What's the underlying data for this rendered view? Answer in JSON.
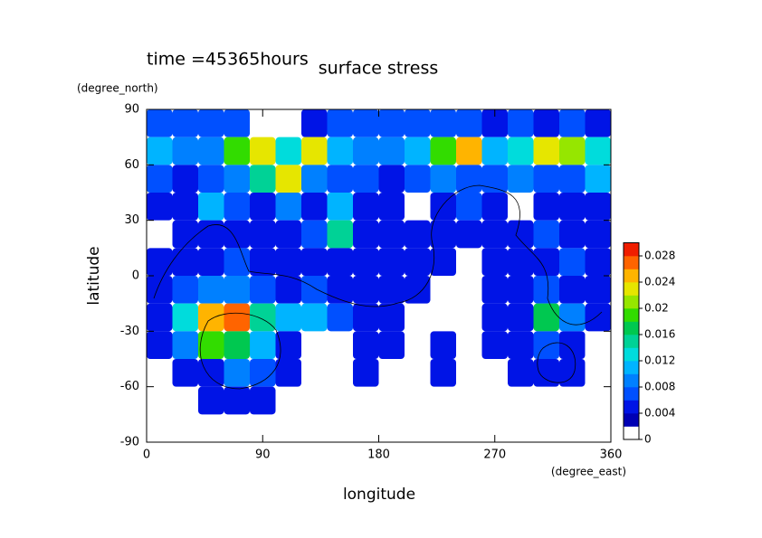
{
  "chart_data": {
    "type": "contour",
    "title": "surface stress",
    "annotation": "time =45365hours",
    "xlabel": "longitude",
    "ylabel": "latitude",
    "xunits": "(degree_east)",
    "yunits": "(degree_north)",
    "xlim": [
      0,
      360
    ],
    "ylim": [
      -90,
      90
    ],
    "xticks": [
      0,
      90,
      180,
      270,
      360
    ],
    "yticks": [
      -90,
      -60,
      -30,
      0,
      30,
      60,
      90
    ],
    "clim": [
      0,
      0.03
    ],
    "cticks": [
      0,
      0.004,
      0.008,
      0.012,
      0.016,
      0.02,
      0.024,
      0.028
    ],
    "colors": [
      "#ffffff",
      "#0000b4",
      "#0014e6",
      "#0050ff",
      "#0080ff",
      "#00b4ff",
      "#00dcdc",
      "#00d296",
      "#00c850",
      "#32dc00",
      "#96e600",
      "#e6e600",
      "#ffb400",
      "#ff6400",
      "#f01e00"
    ],
    "x": [
      10,
      30,
      50,
      70,
      90,
      110,
      130,
      150,
      170,
      190,
      210,
      230,
      250,
      270,
      290,
      310,
      330,
      350
    ],
    "y": [
      82.5,
      67.5,
      52.5,
      37.5,
      22.5,
      7.5,
      -7.5,
      -22.5,
      -37.5,
      -52.5,
      -67.5,
      -82.5
    ],
    "z": [
      [
        0.006,
        0.006,
        0.006,
        0.006,
        null,
        null,
        0.004,
        0.006,
        0.006,
        0.006,
        0.006,
        0.006,
        0.006,
        0.004,
        0.006,
        0.004,
        0.006,
        0.004
      ],
      [
        0.01,
        0.008,
        0.008,
        0.018,
        0.022,
        0.012,
        0.022,
        0.01,
        0.008,
        0.008,
        0.01,
        0.018,
        0.024,
        0.01,
        0.012,
        0.022,
        0.02,
        0.012
      ],
      [
        0.006,
        0.004,
        0.006,
        0.008,
        0.014,
        0.022,
        0.008,
        0.006,
        0.006,
        0.004,
        0.006,
        0.008,
        0.006,
        0.006,
        0.008,
        0.006,
        0.006,
        0.01
      ],
      [
        0.004,
        0.004,
        0.01,
        0.006,
        0.004,
        0.008,
        0.004,
        0.01,
        0.004,
        0.004,
        null,
        0.004,
        0.006,
        0.004,
        null,
        0.004,
        0.004,
        0.004
      ],
      [
        null,
        0.004,
        0.004,
        0.004,
        0.004,
        0.004,
        0.006,
        0.014,
        0.004,
        0.004,
        0.004,
        0.004,
        0.004,
        0.004,
        0.004,
        0.006,
        0.004,
        0.004
      ],
      [
        0.004,
        0.004,
        0.004,
        0.006,
        0.004,
        0.004,
        0.004,
        0.004,
        0.004,
        0.004,
        0.004,
        0.004,
        null,
        0.004,
        0.004,
        0.004,
        0.006,
        0.004
      ],
      [
        0.004,
        0.006,
        0.008,
        0.008,
        0.006,
        0.004,
        0.006,
        0.004,
        0.004,
        0.004,
        0.004,
        null,
        null,
        0.004,
        0.004,
        0.006,
        0.004,
        0.004
      ],
      [
        0.004,
        0.012,
        0.024,
        0.026,
        0.014,
        0.01,
        0.01,
        0.006,
        0.004,
        0.004,
        null,
        null,
        null,
        0.004,
        0.004,
        0.016,
        0.008,
        0.004
      ],
      [
        0.004,
        0.008,
        0.018,
        0.016,
        0.01,
        0.004,
        null,
        null,
        0.004,
        0.004,
        null,
        0.004,
        null,
        0.004,
        0.004,
        0.006,
        0.004,
        null
      ],
      [
        null,
        0.004,
        0.004,
        0.008,
        0.006,
        0.004,
        null,
        null,
        0.004,
        null,
        null,
        0.004,
        null,
        null,
        0.004,
        0.004,
        0.004,
        null
      ],
      [
        null,
        null,
        0.004,
        0.004,
        0.004,
        null,
        null,
        null,
        null,
        null,
        null,
        null,
        null,
        null,
        null,
        null,
        null,
        null
      ],
      [
        null,
        null,
        null,
        null,
        null,
        null,
        null,
        null,
        null,
        null,
        null,
        null,
        null,
        null,
        null,
        null,
        null,
        null
      ]
    ]
  }
}
